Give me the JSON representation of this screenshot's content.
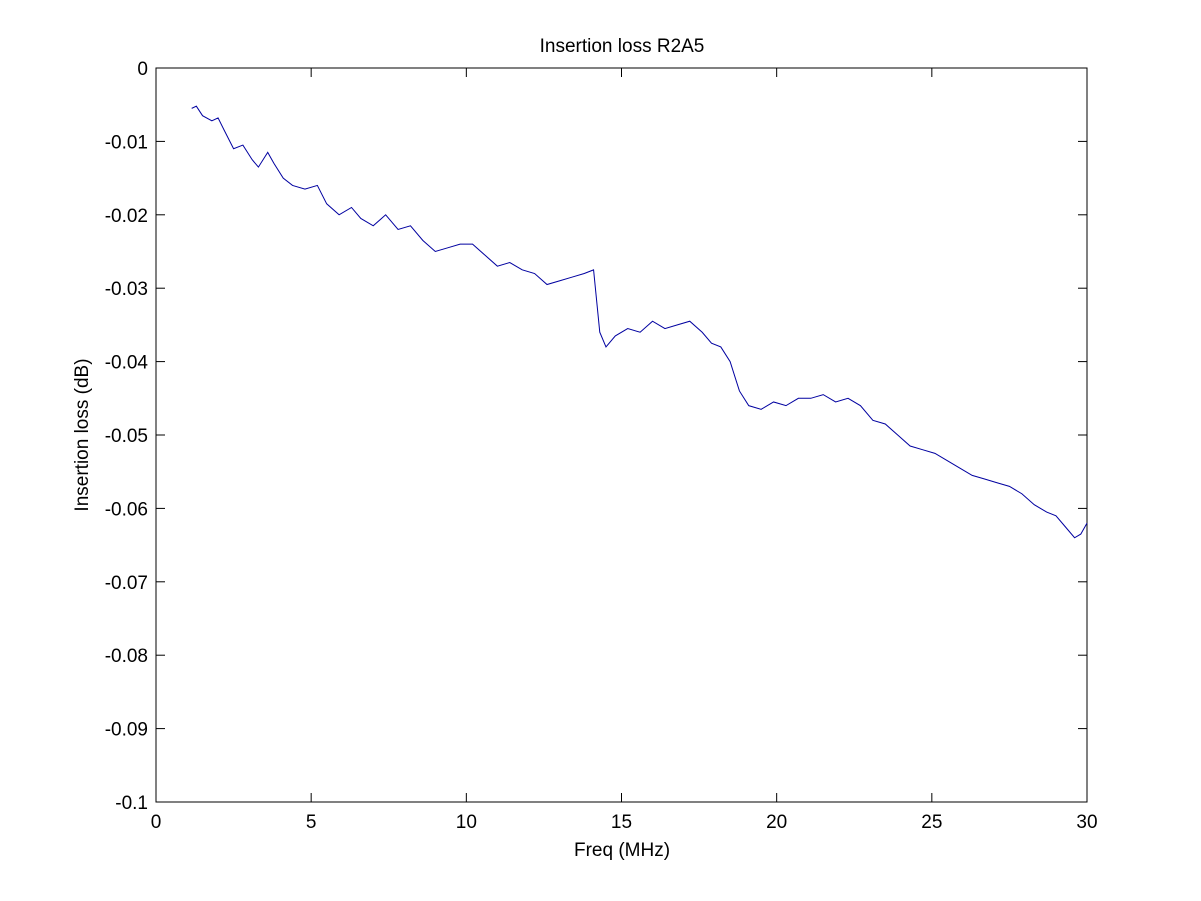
{
  "chart_data": {
    "type": "line",
    "title": "Insertion loss R2A5",
    "xlabel": "Freq (MHz)",
    "ylabel": "Insertion loss (dB)",
    "xlim": [
      0,
      30
    ],
    "ylim": [
      -0.1,
      0
    ],
    "xticks": [
      0,
      5,
      10,
      15,
      20,
      25,
      30
    ],
    "xtick_labels": [
      "0",
      "5",
      "10",
      "15",
      "20",
      "25",
      "30"
    ],
    "yticks": [
      0,
      -0.01,
      -0.02,
      -0.03,
      -0.04,
      -0.05,
      -0.06,
      -0.07,
      -0.08,
      -0.09,
      -0.1
    ],
    "ytick_labels": [
      "0",
      "-0.01",
      "-0.02",
      "-0.03",
      "-0.04",
      "-0.05",
      "-0.06",
      "-0.07",
      "-0.08",
      "-0.09",
      "-0.1"
    ],
    "grid": false,
    "legend": "none",
    "line_color": "#0000a0",
    "series": [
      {
        "x": [
          1.15,
          1.3,
          1.5,
          1.8,
          2.0,
          2.2,
          2.5,
          2.8,
          3.1,
          3.3,
          3.6,
          3.8,
          4.1,
          4.4,
          4.8,
          5.2,
          5.5,
          5.9,
          6.3,
          6.6,
          7.0,
          7.4,
          7.8,
          8.2,
          8.6,
          9.0,
          9.4,
          9.8,
          10.2,
          10.6,
          11.0,
          11.4,
          11.8,
          12.2,
          12.6,
          13.0,
          13.4,
          13.8,
          14.1,
          14.3,
          14.5,
          14.8,
          15.2,
          15.6,
          16.0,
          16.4,
          16.8,
          17.2,
          17.6,
          17.9,
          18.2,
          18.5,
          18.8,
          19.1,
          19.5,
          19.9,
          20.3,
          20.7,
          21.1,
          21.5,
          21.9,
          22.3,
          22.7,
          23.1,
          23.5,
          23.9,
          24.3,
          24.7,
          25.1,
          25.5,
          25.9,
          26.3,
          26.7,
          27.1,
          27.5,
          27.9,
          28.3,
          28.7,
          29.0,
          29.3,
          29.6,
          29.8,
          30.0
        ],
        "y": [
          -0.0055,
          -0.0052,
          -0.0065,
          -0.0072,
          -0.0068,
          -0.0085,
          -0.011,
          -0.0105,
          -0.0125,
          -0.0135,
          -0.0115,
          -0.013,
          -0.015,
          -0.016,
          -0.0165,
          -0.016,
          -0.0185,
          -0.02,
          -0.019,
          -0.0205,
          -0.0215,
          -0.02,
          -0.022,
          -0.0215,
          -0.0235,
          -0.025,
          -0.0245,
          -0.024,
          -0.024,
          -0.0255,
          -0.027,
          -0.0265,
          -0.0275,
          -0.028,
          -0.0295,
          -0.029,
          -0.0285,
          -0.028,
          -0.0275,
          -0.036,
          -0.038,
          -0.0365,
          -0.0355,
          -0.036,
          -0.0345,
          -0.0355,
          -0.035,
          -0.0345,
          -0.036,
          -0.0375,
          -0.038,
          -0.04,
          -0.044,
          -0.046,
          -0.0465,
          -0.0455,
          -0.046,
          -0.045,
          -0.045,
          -0.0445,
          -0.0455,
          -0.045,
          -0.046,
          -0.048,
          -0.0485,
          -0.05,
          -0.0515,
          -0.052,
          -0.0525,
          -0.0535,
          -0.0545,
          -0.0555,
          -0.056,
          -0.0565,
          -0.057,
          -0.058,
          -0.0595,
          -0.0605,
          -0.061,
          -0.0625,
          -0.064,
          -0.0635,
          -0.062
        ]
      }
    ]
  }
}
